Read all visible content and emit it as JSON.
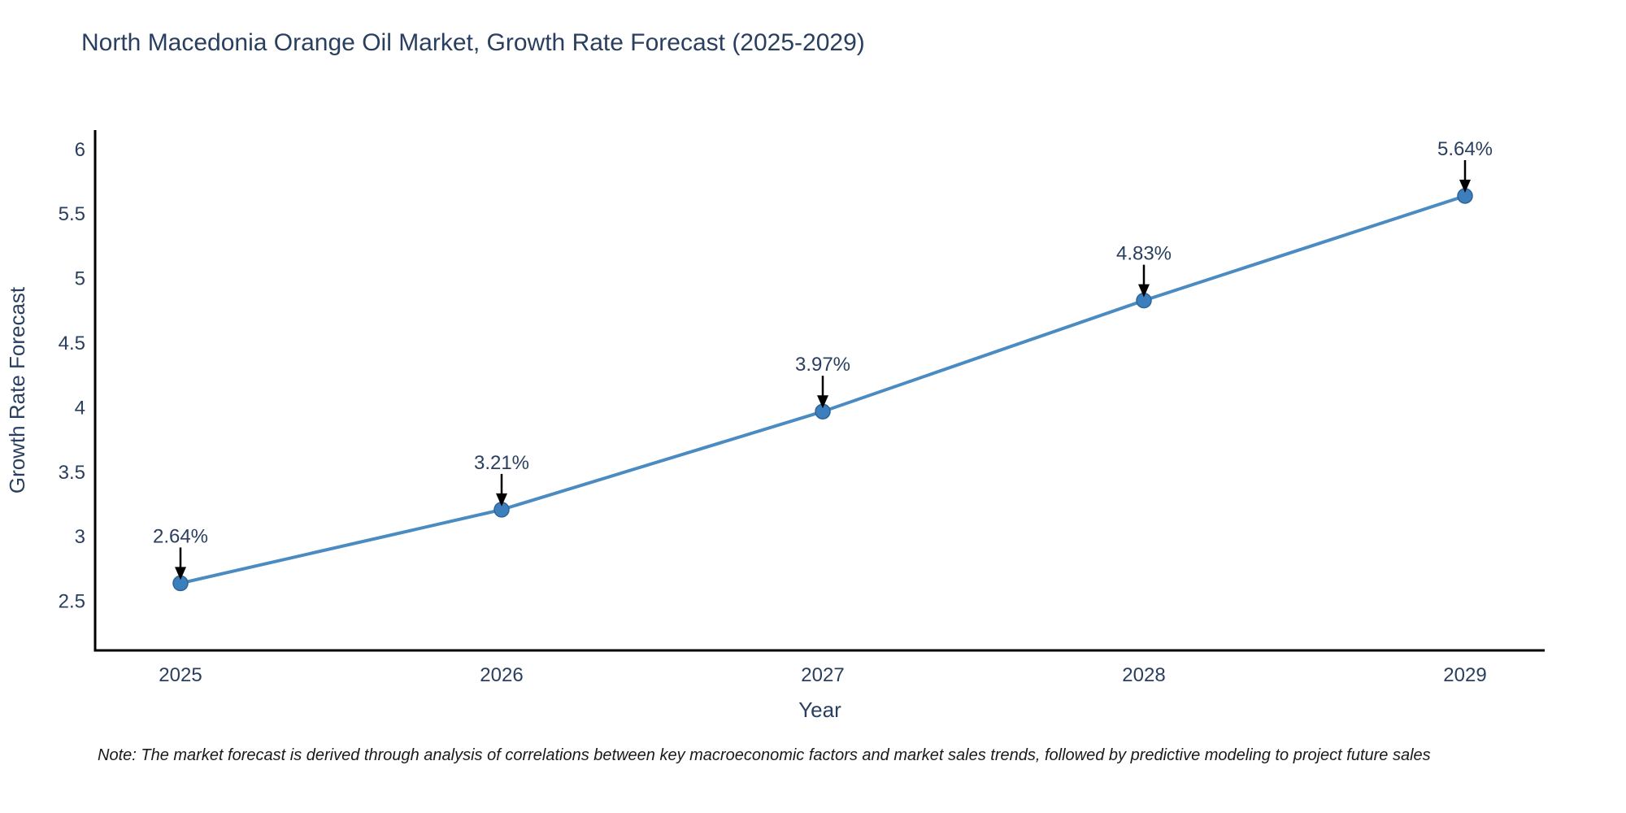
{
  "figure": {
    "title": "North Macedonia Orange Oil Market, Growth Rate Forecast (2025-2029)",
    "note": "Note: The market forecast is derived through analysis of correlations between key macroeconomic factors and market sales trends, followed by predictive modeling to project future sales"
  },
  "chart_data": {
    "type": "line",
    "title": "North Macedonia Orange Oil Market, Growth Rate Forecast (2025-2029)",
    "categories": [
      "2025",
      "2026",
      "2027",
      "2028",
      "2029"
    ],
    "values": [
      2.64,
      3.21,
      3.97,
      4.83,
      5.64
    ],
    "point_labels": [
      "2.64%",
      "3.21%",
      "3.97%",
      "4.83%",
      "5.64%"
    ],
    "xlabel": "Year",
    "ylabel": "Growth Rate Forecast",
    "ylim": [
      2.12,
      6.15
    ],
    "yticks": [
      2.5,
      3,
      3.5,
      4,
      4.5,
      5,
      5.5,
      6
    ],
    "grid": false,
    "legend_position": "none",
    "colors": {
      "line": "#4a8bc2",
      "marker_fill": "#3d7ebd",
      "marker_edge": "#2f6496",
      "axis_line": "#000000",
      "text": "#2a3f5f",
      "annotation_arrow": "#000000"
    }
  }
}
